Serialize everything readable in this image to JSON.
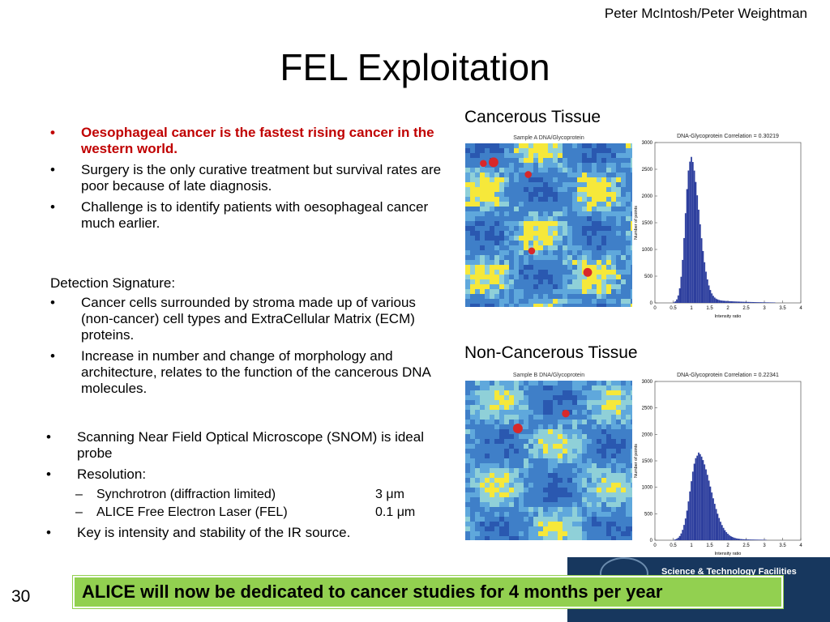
{
  "header": {
    "author": "Peter McIntosh/Peter Weightman",
    "title": "FEL Exploitation"
  },
  "bullets_intro": [
    "Oesophageal cancer is the fastest rising cancer in the western world.",
    "Surgery is the only curative treatment but survival rates are poor because of late diagnosis.",
    "Challenge is to identify patients with oesophageal cancer much earlier."
  ],
  "detection": {
    "label": "Detection Signature:",
    "items": [
      "Cancer cells surrounded by stroma made up of various (non-cancer) cell types and ExtraCellular Matrix (ECM) proteins.",
      "Increase in number and change of morphology and architecture, relates to the function of the cancerous DNA molecules."
    ]
  },
  "snom": {
    "probe": "Scanning Near Field Optical Microscope (SNOM) is ideal probe",
    "resolution_label": "Resolution:",
    "resolution_items": [
      {
        "source": "Synchrotron (diffraction limited)",
        "value": "3 μm"
      },
      {
        "source": "ALICE Free Electron Laser (FEL)",
        "value": "0.1 μm"
      }
    ],
    "key": "Key is intensity and stability of the IR source."
  },
  "panels": {
    "cancerous": {
      "label": "Cancerous Tissue",
      "map_title": "Sample A DNA/Glycoprotein",
      "hist_title": "DNA-Glycoprotein Correlation = 0.30219",
      "hist_ylabel": "Number of points",
      "hist_xlabel": "Intensity ratio",
      "y_ticks": [
        "0",
        "500",
        "1000",
        "1500",
        "2000",
        "2500",
        "3000"
      ],
      "x_ticks": [
        "0",
        "0.5",
        "1",
        "1.5",
        "2",
        "2.5",
        "3",
        "3.5",
        "4"
      ],
      "peak_x": 0.95,
      "peak_y": 2650,
      "spread": 0.17
    },
    "non_cancerous": {
      "label": "Non-Cancerous Tissue",
      "map_title": "Sample B DNA/Glycoprotein",
      "hist_title": "DNA-Glycoprotein Correlation = 0.22341",
      "hist_ylabel": "Number of points",
      "hist_xlabel": "Intensity ratio",
      "y_ticks": [
        "0",
        "500",
        "1000",
        "1500",
        "2000",
        "2500",
        "3000"
      ],
      "x_ticks": [
        "0",
        "0.5",
        "1",
        "1.5",
        "2",
        "2.5",
        "3",
        "3.5",
        "4"
      ],
      "peak_x": 1.15,
      "peak_y": 1600,
      "spread": 0.25
    }
  },
  "footer": {
    "page_number": "30",
    "banner": "ALICE will now be dedicated to cancer studies for 4 months per year",
    "logo_text": "Science & Technology Facilities Council"
  },
  "colors": {
    "red_text": "#c00000",
    "banner_green": "#92d050",
    "bar_blue": "#2e3f9e",
    "logo_navy": "#17375e"
  }
}
